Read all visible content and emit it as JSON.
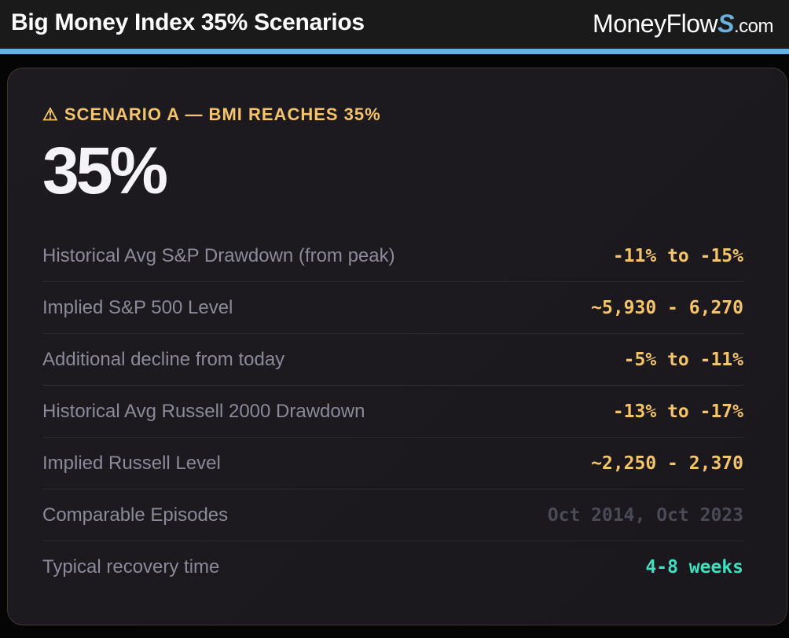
{
  "header": {
    "title": "Big Money Index 35% Scenarios",
    "logo": {
      "main": "MoneyFlow",
      "s": "S",
      "suffix": ".com"
    }
  },
  "card": {
    "scenario_label": "⚠ SCENARIO A — BMI REACHES 35%",
    "big_value": "35%",
    "rows": [
      {
        "label": "Historical Avg S&P Drawdown (from peak)",
        "value": "-11% to -15%"
      },
      {
        "label": "Implied S&P 500 Level",
        "value": "~5,930 - 6,270"
      },
      {
        "label": "Additional decline from today",
        "value": "-5% to -11%"
      },
      {
        "label": "Historical Avg Russell 2000 Drawdown",
        "value": "-13% to -17%"
      },
      {
        "label": "Implied Russell Level",
        "value": "~2,250 - 2,370"
      },
      {
        "label": "Comparable Episodes",
        "value": "Oct 2014, Oct 2023"
      },
      {
        "label": "Typical recovery time",
        "value": "4-8 weeks"
      }
    ]
  },
  "colors": {
    "accent": "#f5c46a",
    "blue": "#6ab0dc",
    "green": "#3ee0c0",
    "muted": "#4a4a55"
  }
}
